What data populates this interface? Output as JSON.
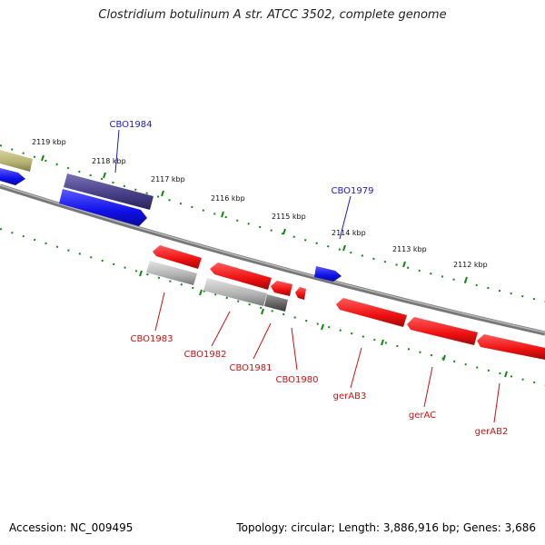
{
  "map": {
    "title": "Clostridium botulinum A str. ATCC 3502, complete genome",
    "accession": "Accession: NC_009495",
    "stats": "Topology: circular; Length: 3,886,916 bp; Genes: 3,686",
    "scale_labels": [
      "2119 kbp",
      "2118 kbp",
      "2117 kbp",
      "2116 kbp",
      "2115 kbp",
      "2114 kbp",
      "2113 kbp",
      "2112 kbp"
    ],
    "gene_labels": {
      "cbo1984": "CBO1984",
      "cbo1979": "CBO1979",
      "cbo1983": "CBO1983",
      "cbo1982": "CBO1982",
      "cbo1981": "CBO1981",
      "cbo1980": "CBO1980",
      "gerab3": "gerAB3",
      "gerac": "gerAC",
      "gerab2": "gerAB2"
    },
    "colors": {
      "forward_cds": "#1a1af0",
      "forward_gene": "#4b4488",
      "reverse_cds": "#ee1111",
      "pseudo": "#a9a9a9",
      "other": "#b4b070",
      "backbone": "#888888",
      "ticks": "#118811"
    }
  }
}
